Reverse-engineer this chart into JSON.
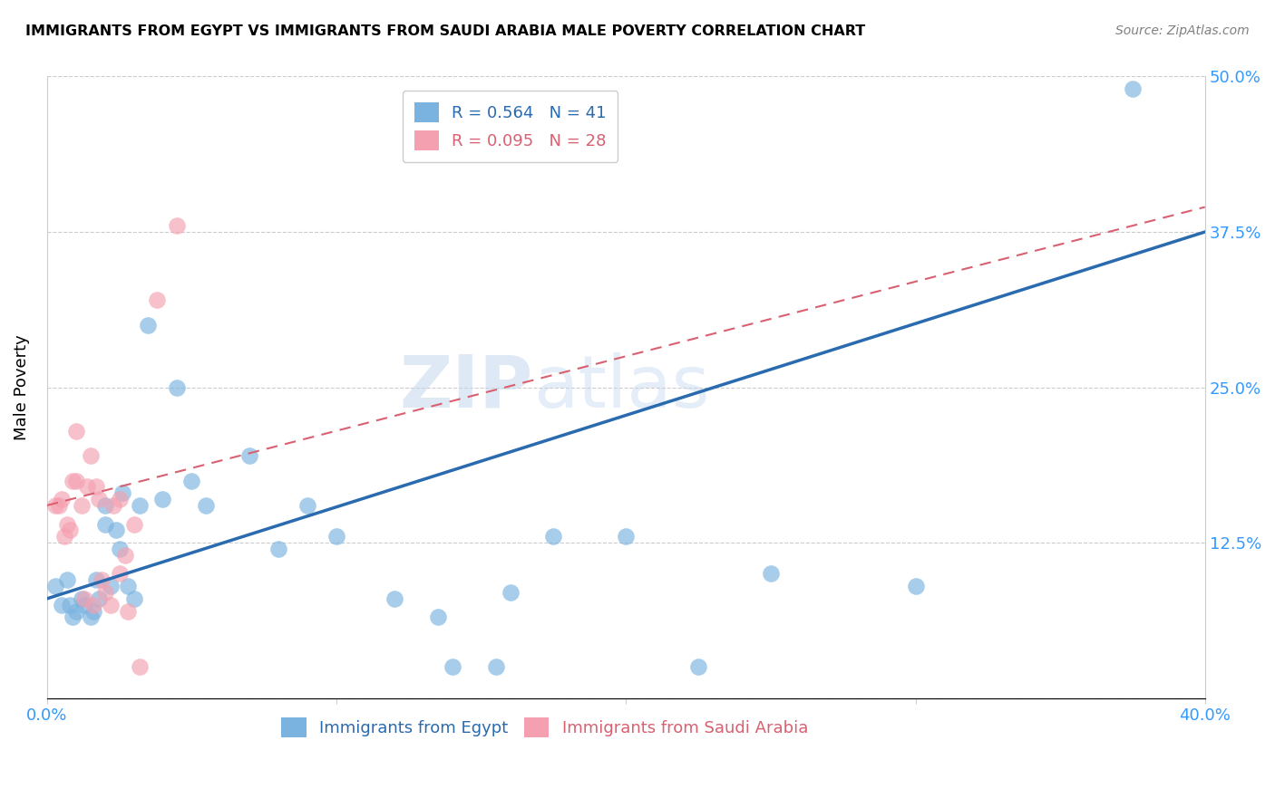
{
  "title": "IMMIGRANTS FROM EGYPT VS IMMIGRANTS FROM SAUDI ARABIA MALE POVERTY CORRELATION CHART",
  "source": "Source: ZipAtlas.com",
  "ylabel": "Male Poverty",
  "xlim": [
    0.0,
    0.4
  ],
  "ylim": [
    0.0,
    0.5
  ],
  "x_ticks": [
    0.0,
    0.1,
    0.2,
    0.3,
    0.4
  ],
  "x_tick_labels": [
    "0.0%",
    "",
    "",
    "",
    "40.0%"
  ],
  "y_ticks": [
    0.0,
    0.125,
    0.25,
    0.375,
    0.5
  ],
  "y_tick_labels": [
    "",
    "12.5%",
    "25.0%",
    "37.5%",
    "50.0%"
  ],
  "egypt_R": 0.564,
  "egypt_N": 41,
  "saudi_R": 0.095,
  "saudi_N": 28,
  "egypt_color": "#7ab3e0",
  "saudi_color": "#f4a0b0",
  "egypt_line_color": "#2a6aaf",
  "saudi_line_color": "#d96070",
  "watermark_color": "#c5d8f0",
  "egypt_points_x": [
    0.003,
    0.005,
    0.007,
    0.008,
    0.009,
    0.01,
    0.012,
    0.013,
    0.015,
    0.016,
    0.017,
    0.018,
    0.02,
    0.02,
    0.022,
    0.024,
    0.025,
    0.026,
    0.028,
    0.03,
    0.032,
    0.035,
    0.04,
    0.045,
    0.05,
    0.055,
    0.07,
    0.08,
    0.09,
    0.1,
    0.12,
    0.135,
    0.14,
    0.155,
    0.16,
    0.175,
    0.2,
    0.225,
    0.25,
    0.3,
    0.375
  ],
  "egypt_points_y": [
    0.09,
    0.075,
    0.095,
    0.075,
    0.065,
    0.07,
    0.08,
    0.075,
    0.065,
    0.07,
    0.095,
    0.08,
    0.14,
    0.155,
    0.09,
    0.135,
    0.12,
    0.165,
    0.09,
    0.08,
    0.155,
    0.3,
    0.16,
    0.25,
    0.175,
    0.155,
    0.195,
    0.12,
    0.155,
    0.13,
    0.08,
    0.065,
    0.025,
    0.025,
    0.085,
    0.13,
    0.13,
    0.025,
    0.1,
    0.09,
    0.49
  ],
  "saudi_points_x": [
    0.003,
    0.004,
    0.005,
    0.006,
    0.007,
    0.008,
    0.009,
    0.01,
    0.01,
    0.012,
    0.013,
    0.014,
    0.015,
    0.016,
    0.017,
    0.018,
    0.019,
    0.02,
    0.022,
    0.023,
    0.025,
    0.025,
    0.027,
    0.028,
    0.03,
    0.032,
    0.038,
    0.045
  ],
  "saudi_points_y": [
    0.155,
    0.155,
    0.16,
    0.13,
    0.14,
    0.135,
    0.175,
    0.175,
    0.215,
    0.155,
    0.08,
    0.17,
    0.195,
    0.075,
    0.17,
    0.16,
    0.095,
    0.085,
    0.075,
    0.155,
    0.16,
    0.1,
    0.115,
    0.07,
    0.14,
    0.025,
    0.32,
    0.38
  ],
  "egypt_line_x0": 0.0,
  "egypt_line_y0": 0.08,
  "egypt_line_x1": 0.4,
  "egypt_line_y1": 0.375,
  "saudi_line_x0": 0.0,
  "saudi_line_y0": 0.155,
  "saudi_line_x1": 0.4,
  "saudi_line_y1": 0.395
}
